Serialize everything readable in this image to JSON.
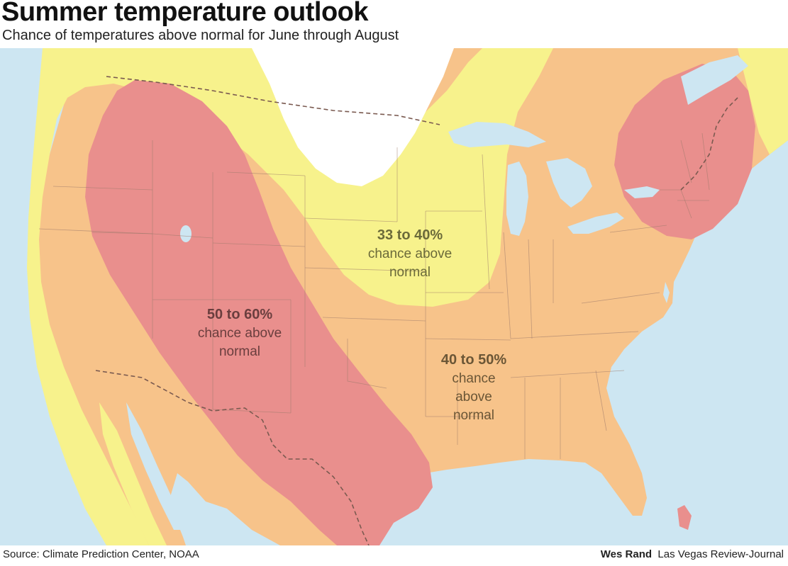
{
  "title": "Summer temperature outlook",
  "subtitle": "Chance of temperatures above normal for June through August",
  "source": "Source: Climate Prediction Center, NOAA",
  "credit_author": "Wes Rand",
  "credit_org": "Las Vegas Review-Journal",
  "colors": {
    "water": "#cde6f2",
    "land_no_signal": "#ffffff",
    "zone_33_40": "#f7f28c",
    "zone_40_50": "#f7c38a",
    "zone_50_60": "#e98f8d",
    "borders": "#9c7a6a"
  },
  "zones": [
    {
      "pct": "33 to 40%",
      "line1": "chance above",
      "line2": "normal",
      "line3": ""
    },
    {
      "pct": "50 to 60%",
      "line1": "chance above",
      "line2": "normal",
      "line3": ""
    },
    {
      "pct": "40 to 50%",
      "line1": "chance",
      "line2": "above",
      "line3": "normal"
    }
  ]
}
